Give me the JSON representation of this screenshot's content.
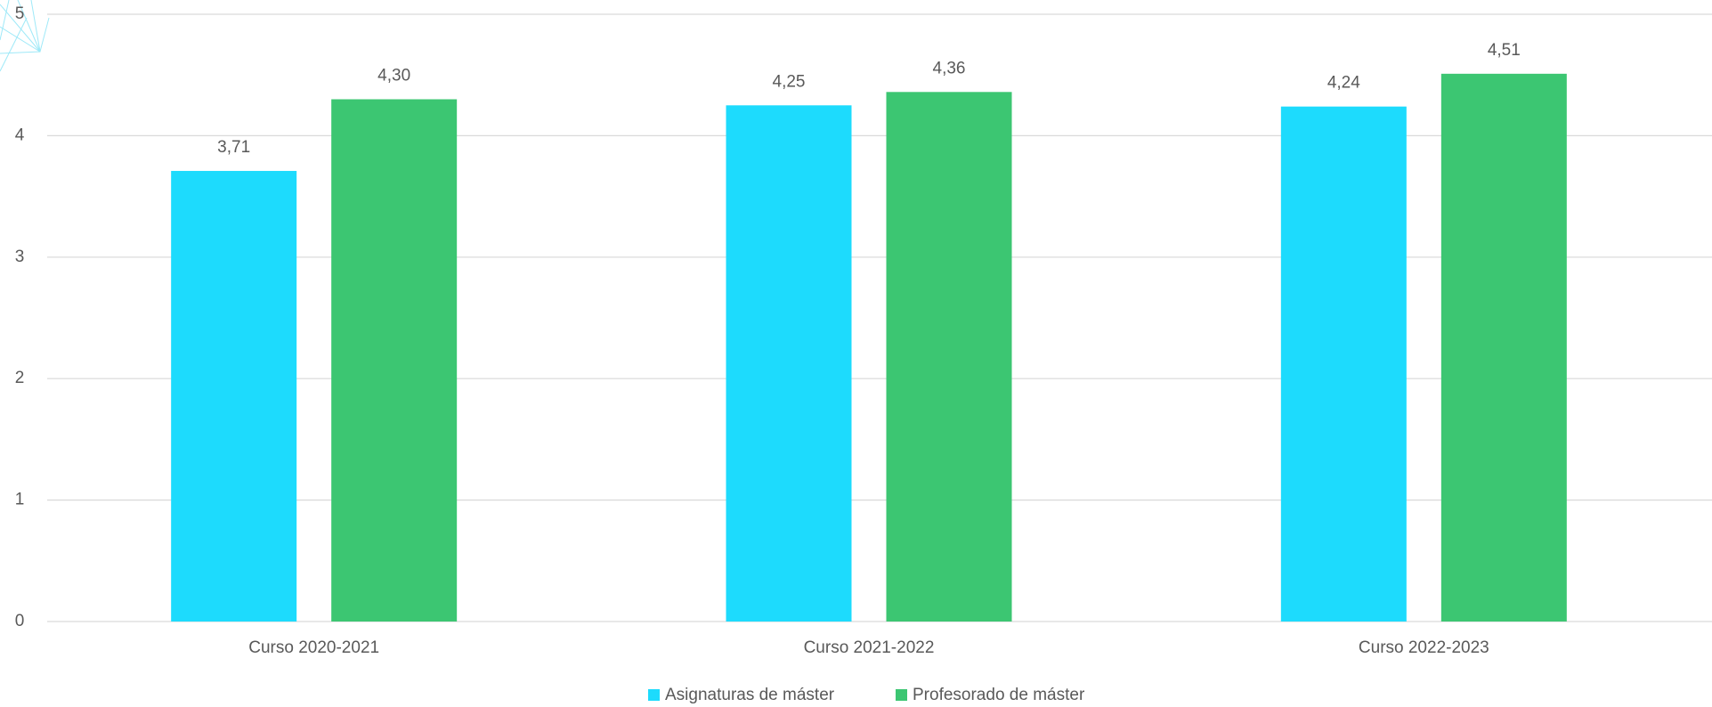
{
  "chart_data": {
    "type": "bar",
    "categories": [
      "Curso 2020-2021",
      "Curso 2021-2022",
      "Curso 2022-2023"
    ],
    "series": [
      {
        "name": "Asignaturas de máster",
        "color": "#1ddbfd",
        "values": [
          3.71,
          4.25,
          4.24
        ],
        "value_labels": [
          "3,71",
          "4,25",
          "4,24"
        ]
      },
      {
        "name": "Profesorado de máster",
        "color": "#3cc672",
        "values": [
          4.3,
          4.36,
          4.51
        ],
        "value_labels": [
          "4,30",
          "4,36",
          "4,51"
        ]
      }
    ],
    "ylim": [
      0,
      5
    ],
    "yticks": [
      0,
      1,
      2,
      3,
      4,
      5
    ],
    "grid": true
  }
}
